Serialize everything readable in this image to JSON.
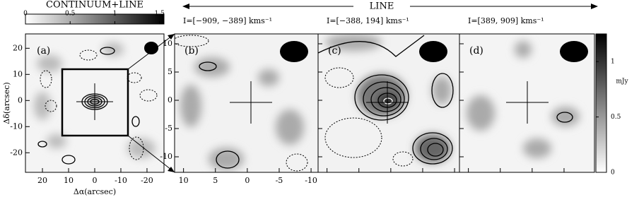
{
  "top_colorbar": {
    "label": "CONTINUUM+LINE",
    "lim": [
      0,
      1.55
    ],
    "ticks": [
      0,
      0.5,
      1,
      1.5
    ]
  },
  "line_header": "LINE",
  "panel_a": {
    "label": "(a)",
    "xlim": [
      26.5,
      -26.5
    ],
    "ylim": [
      -27.5,
      25.5
    ],
    "xticks": [
      20,
      10,
      0,
      -10,
      -20
    ],
    "yticks": [
      20,
      10,
      0,
      -10,
      -20
    ],
    "xlabel": "Δα(arcsec)",
    "ylabel": "Δδ(arcsec)"
  },
  "zoom_axes": {
    "xlim": [
      11.4,
      -11.1
    ],
    "ylim": [
      -12.75,
      11.75
    ],
    "xticks": [
      10,
      5,
      0,
      -5,
      -10
    ],
    "yticks": [
      10,
      5,
      0,
      -5,
      -10
    ]
  },
  "zoom_panels": [
    {
      "label": "(b)",
      "interval": "I=[−909, −389] kms⁻¹"
    },
    {
      "label": "(c)",
      "interval": "I=[−388, 194] kms⁻¹"
    },
    {
      "label": "(d)",
      "interval": "I=[389, 909] kms⁻¹"
    }
  ],
  "right_colorbar": {
    "label": "mJy",
    "lim": [
      0,
      1.25
    ],
    "ticks": [
      0,
      0.5,
      1
    ]
  }
}
